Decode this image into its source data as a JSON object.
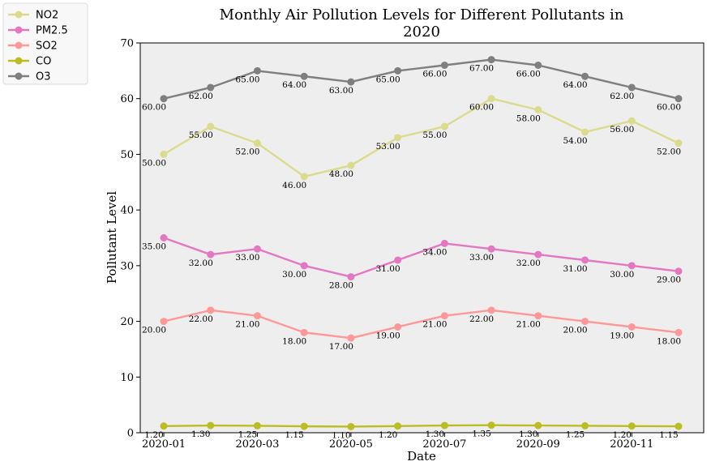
{
  "chart_data": {
    "type": "line",
    "title_lines": [
      "Monthly Air Pollution Levels for Different Pollutants in",
      "2020"
    ],
    "xlabel": "Date",
    "ylabel": "Pollutant Level",
    "ylim": [
      0,
      70
    ],
    "yticks": [
      0,
      10,
      20,
      30,
      40,
      50,
      60,
      70
    ],
    "x": [
      "2020-01",
      "2020-02",
      "2020-03",
      "2020-04",
      "2020-05",
      "2020-06",
      "2020-07",
      "2020-08",
      "2020-09",
      "2020-10",
      "2020-11",
      "2020-12"
    ],
    "xticks": [
      "2020-01",
      "2020-03",
      "2020-05",
      "2020-07",
      "2020-09",
      "2020-11"
    ],
    "grid": false,
    "legend_position": "outside-top-left",
    "series": [
      {
        "name": "NO2",
        "color": "#dbdb8d",
        "values": [
          50,
          55,
          52,
          46,
          48,
          53,
          55,
          60,
          58,
          54,
          56,
          52
        ],
        "labels": [
          "50.00",
          "55.00",
          "52.00",
          "46.00",
          "48.00",
          "53.00",
          "55.00",
          "60.00",
          "58.00",
          "54.00",
          "56.00",
          "52.00"
        ]
      },
      {
        "name": "PM2.5",
        "color": "#e377c2",
        "values": [
          35,
          32,
          33,
          30,
          28,
          31,
          34,
          33,
          32,
          31,
          30,
          29
        ],
        "labels": [
          "35.00",
          "32.00",
          "33.00",
          "30.00",
          "28.00",
          "31.00",
          "34.00",
          "33.00",
          "32.00",
          "31.00",
          "30.00",
          "29.00"
        ]
      },
      {
        "name": "SO2",
        "color": "#ff9896",
        "values": [
          20,
          22,
          21,
          18,
          17,
          19,
          21,
          22,
          21,
          20,
          19,
          18
        ],
        "labels": [
          "20.00",
          "22.00",
          "21.00",
          "18.00",
          "17.00",
          "19.00",
          "21.00",
          "22.00",
          "21.00",
          "20.00",
          "19.00",
          "18.00"
        ]
      },
      {
        "name": "CO",
        "color": "#bcbd22",
        "values": [
          1.2,
          1.3,
          1.25,
          1.15,
          1.1,
          1.2,
          1.3,
          1.35,
          1.3,
          1.25,
          1.2,
          1.15
        ],
        "labels": [
          "1.20",
          "1.30",
          "1.25",
          "1.15",
          "1.10",
          "1.20",
          "1.30",
          "1.35",
          "1.30",
          "1.25",
          "1.20",
          "1.15"
        ]
      },
      {
        "name": "O3",
        "color": "#7f7f7f",
        "values": [
          60,
          62,
          65,
          64,
          63,
          65,
          66,
          67,
          66,
          64,
          62,
          60
        ],
        "labels": [
          "60.00",
          "62.00",
          "65.00",
          "64.00",
          "63.00",
          "65.00",
          "66.00",
          "67.00",
          "66.00",
          "64.00",
          "62.00",
          "60.00"
        ]
      }
    ]
  }
}
